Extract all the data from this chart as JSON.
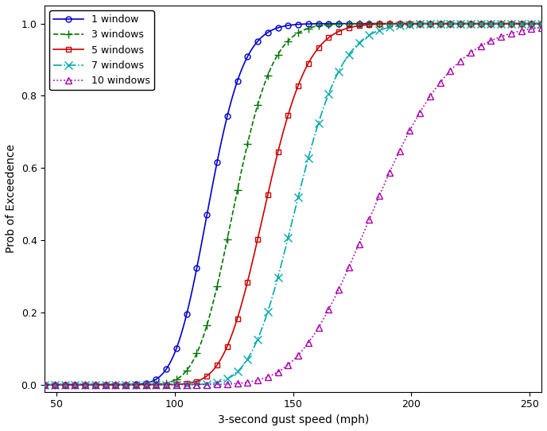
{
  "title": "",
  "xlabel": "3-second gust speed (mph)",
  "ylabel": "Prob of Exceedence",
  "xlim": [
    45,
    255
  ],
  "ylim": [
    -0.02,
    1.05
  ],
  "xticks": [
    50,
    100,
    150,
    200,
    250
  ],
  "yticks": [
    0,
    0.2,
    0.4,
    0.6,
    0.8,
    1.0
  ],
  "series": [
    {
      "label": "1 window",
      "color": "#0000cc",
      "linestyle": "-",
      "marker": "o",
      "markerfacecolor": "none",
      "markersize": 5,
      "linewidth": 1.2,
      "mu": 4.74,
      "sigma": 0.1,
      "lognormal": true
    },
    {
      "label": "3 windows",
      "color": "#007700",
      "linestyle": "--",
      "marker": "+",
      "markerfacecolor": "#007700",
      "markersize": 7,
      "linewidth": 1.2,
      "mu": 4.83,
      "sigma": 0.1,
      "lognormal": true
    },
    {
      "label": "5 windows",
      "color": "#cc0000",
      "linestyle": "-",
      "marker": "s",
      "markerfacecolor": "none",
      "markersize": 5,
      "linewidth": 1.2,
      "mu": 4.93,
      "sigma": 0.1,
      "lognormal": true
    },
    {
      "label": "7 windows",
      "color": "#00aaaa",
      "linestyle": "-.",
      "marker": "x",
      "markerfacecolor": "#00aaaa",
      "markersize": 7,
      "linewidth": 1.2,
      "mu": 5.02,
      "sigma": 0.1,
      "lognormal": true
    },
    {
      "label": "10 windows",
      "color": "#aa00aa",
      "linestyle": ":",
      "marker": "^",
      "markerfacecolor": "none",
      "markersize": 6,
      "linewidth": 1.2,
      "mu": 5.22,
      "sigma": 0.14,
      "lognormal": true
    }
  ],
  "n_marker_points": 50,
  "background_color": "#ffffff",
  "legend_loc": "upper left",
  "legend_fontsize": 9,
  "axis_fontsize": 10,
  "tick_fontsize": 9
}
